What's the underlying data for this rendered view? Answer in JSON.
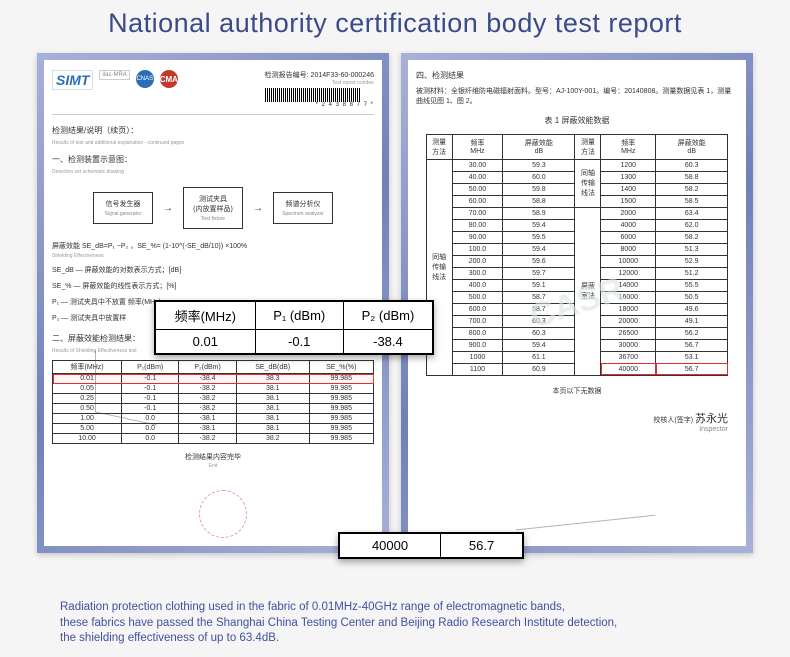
{
  "header": "National authority certification body test report",
  "left": {
    "logo": "SIMT",
    "cma": "CMA",
    "report_no_label": "检测报告编号: 2014F33-60-000246",
    "report_no_en": "Test report number",
    "barcode_num": "* 2 4 3 8 8 7 7 *",
    "sec1": "检测结果/说明（续页）：",
    "sec1_en": "Results of test and additional explanation - continued pages",
    "sec_a": "一、检测装置示意图：",
    "sec_a_en": "Detection set schematic drawing",
    "bd": {
      "b1": "信号发生器",
      "b1_en": "Signal generator",
      "b2": "测试夹具\n(内放置样品)",
      "b2_en": "Test fixture",
      "b3": "频谱分析仪",
      "b3_en": "Spectrum analyzer"
    },
    "f1": "屏蔽效能 SE_dB=P₁ −P₂ ，SE_%= (1-10^(-SE_dB/10)) ×100%",
    "f1_en": "Shielding Effectiveness",
    "f2": "SE_dB — 屏蔽效能的对数表示方式；[dB]",
    "f3": "SE_% — 屏蔽效能的线性表示方式；[%]",
    "f4": "P₁ — 测试夹具中不放置  频率(MHz)",
    "f5": "P₂ — 测试夹具中放置样  ",
    "sec_b": "二、屏蔽效能检测结果：",
    "sec_b_en": "Results of Shielding Effectiveness test",
    "cols": [
      "频率(MHz)",
      "P₁(dBm)",
      "P₂(dBm)",
      "SE_dB(dB)",
      "SE_%(%)"
    ],
    "rows": [
      [
        "0.01",
        "-0.1",
        "-38.4",
        "38.3",
        "99.985"
      ],
      [
        "0.05",
        "-0.1",
        "-38.2",
        "38.1",
        "99.985"
      ],
      [
        "0.25",
        "-0.1",
        "-38.2",
        "38.1",
        "99.985"
      ],
      [
        "0.50",
        "-0.1",
        "-38.2",
        "38.1",
        "99.985"
      ],
      [
        "1.00",
        "0.0",
        "-38.1",
        "38.1",
        "99.985"
      ],
      [
        "5.00",
        "0.0",
        "-38.1",
        "38.1",
        "99.985"
      ],
      [
        "10.00",
        "0.0",
        "-38.2",
        "38.2",
        "99.985"
      ]
    ],
    "end": "检测结果内容完毕",
    "end_en": "End"
  },
  "overlay1": {
    "headers": [
      "频率(MHz)",
      "P₁ (dBm)",
      "P₂ (dBm)"
    ],
    "row": [
      "0.01",
      "-0.1",
      "-38.4"
    ]
  },
  "overlay2": {
    "c1": "40000",
    "c2": "56.7"
  },
  "right": {
    "watermark": "CASR",
    "sec": "四、检测结果",
    "mat": "被测材料：全银纤维防电磁辐射面料。型号：AJ-100Y-001。编号：20140808。测量数据见表 1，测量曲线见图 1、图 2。",
    "t_title": "表 1 屏蔽效能数据",
    "cols": [
      "测量方法",
      "频率\nMHz",
      "屏蔽效能\ndB",
      "测量方法",
      "频率\nMHz",
      "屏蔽效能\ndB"
    ],
    "method_l": "同轴传输线法",
    "method_r1": "同轴传输线法",
    "method_r2": "屏蔽室法",
    "rowsL": [
      [
        "30.00",
        "59.3"
      ],
      [
        "40.00",
        "60.0"
      ],
      [
        "50.00",
        "59.8"
      ],
      [
        "60.00",
        "58.8"
      ],
      [
        "70.00",
        "58.9"
      ],
      [
        "80.00",
        "59.4"
      ],
      [
        "90.00",
        "59.5"
      ],
      [
        "100.0",
        "59.4"
      ],
      [
        "200.0",
        "59.6"
      ],
      [
        "300.0",
        "59.7"
      ],
      [
        "400.0",
        "59.1"
      ],
      [
        "500.0",
        "58.7"
      ],
      [
        "600.0",
        "58.7"
      ],
      [
        "700.0",
        "60.3"
      ],
      [
        "800.0",
        "60.3"
      ],
      [
        "900.0",
        "59.4"
      ],
      [
        "1000",
        "61.1"
      ],
      [
        "1100",
        "60.9"
      ]
    ],
    "rowsR": [
      [
        "1200",
        "60.3"
      ],
      [
        "1300",
        "58.8"
      ],
      [
        "1400",
        "58.2"
      ],
      [
        "1500",
        "58.5"
      ],
      [
        "2000",
        "63.4"
      ],
      [
        "4000",
        "62.0"
      ],
      [
        "6000",
        "58.2"
      ],
      [
        "8000",
        "51.3"
      ],
      [
        "10000",
        "52.9"
      ],
      [
        "12000",
        "51.2"
      ],
      [
        "14000",
        "55.5"
      ],
      [
        "16000",
        "50.5"
      ],
      [
        "18000",
        "49.6"
      ],
      [
        "20000",
        "49.1"
      ],
      [
        "26500",
        "56.2"
      ],
      [
        "30000",
        "56.7"
      ],
      [
        "36700",
        "53.1"
      ],
      [
        "40000",
        "56.7"
      ]
    ],
    "no_more": "本页以下无数据",
    "insp_label": "校核人(签字)",
    "insp_en": "Inspector",
    "sig": "苏永光"
  },
  "footer": {
    "l1": "Radiation protection clothing used in the fabric of 0.01MHz-40GHz range of electromagnetic bands,",
    "l2": "these fabrics have passed the Shanghai China Testing Center and Beijing Radio Research Institute detection,",
    "l3": "the shielding effectiveness of up to 63.4dB."
  }
}
